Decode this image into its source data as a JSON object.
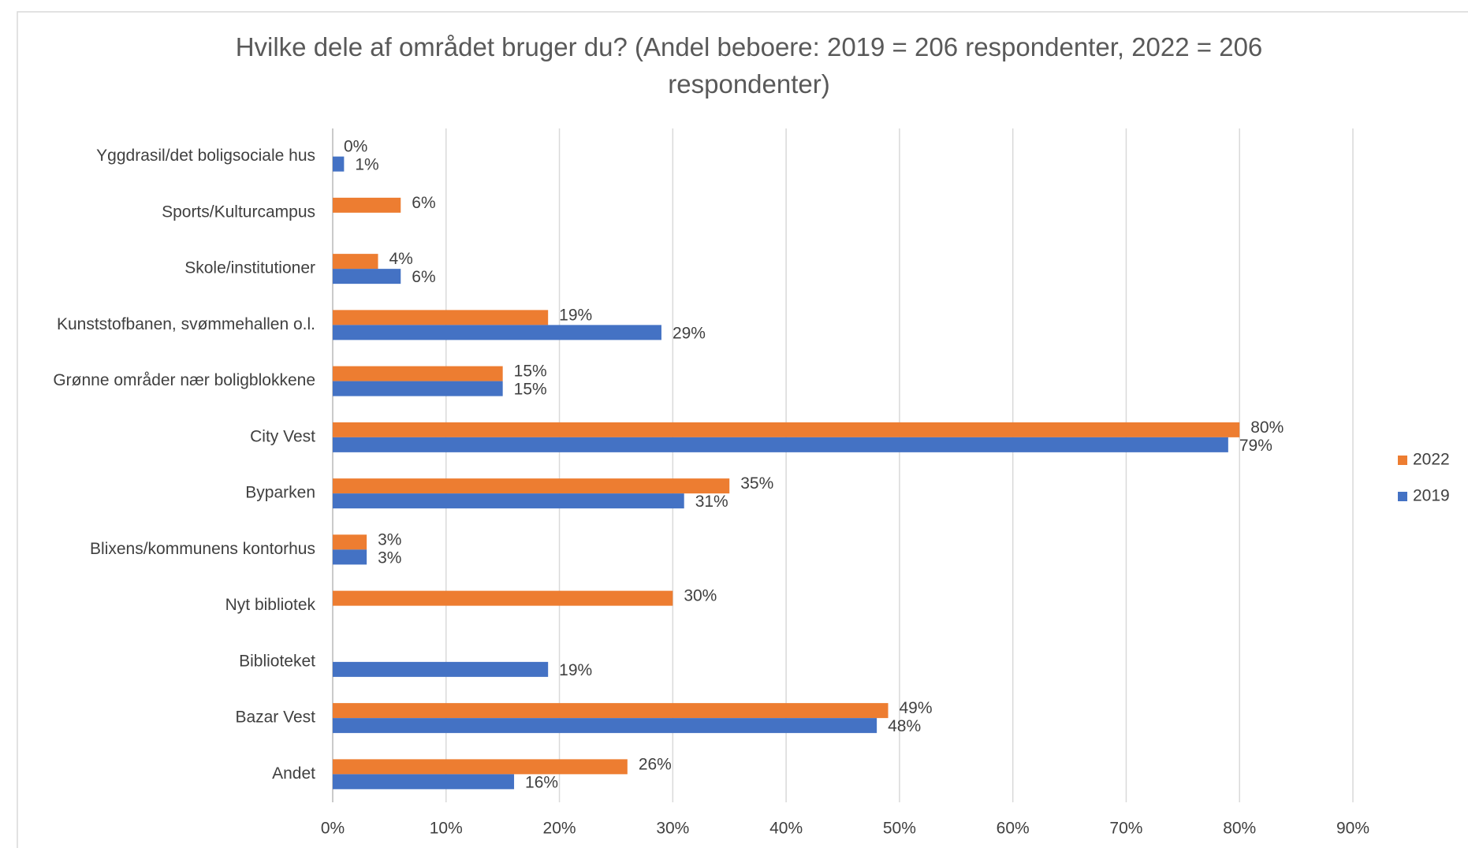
{
  "chart_data": {
    "type": "bar",
    "orientation": "horizontal",
    "title": "Hvilke dele af området bruger du? (Andel beboere: 2019 = 206 respondenter, 2022 = 206 respondenter)",
    "categories": [
      "Yggdrasil/det boligsociale hus",
      "Sports/Kulturcampus",
      "Skole/institutioner",
      "Kunststofbanen, svømmehallen o.l.",
      "Grønne områder nær boligblokkene",
      "City Vest",
      "Byparken",
      "Blixens/kommunens kontorhus",
      "Nyt bibliotek",
      "Biblioteket",
      "Bazar Vest",
      "Andet"
    ],
    "series": [
      {
        "name": "2022",
        "color": "#ed7d31",
        "values": [
          0,
          6,
          4,
          19,
          15,
          80,
          35,
          3,
          30,
          null,
          49,
          26
        ],
        "value_labels": [
          "0%",
          "6%",
          "4%",
          "19%",
          "15%",
          "80%",
          "35%",
          "3%",
          "30%",
          null,
          "49%",
          "26%"
        ]
      },
      {
        "name": "2019",
        "color": "#4472c4",
        "values": [
          1,
          null,
          6,
          29,
          15,
          79,
          31,
          3,
          null,
          19,
          48,
          16
        ],
        "value_labels": [
          "1%",
          null,
          "6%",
          "29%",
          "15%",
          "79%",
          "31%",
          "3%",
          null,
          "19%",
          "48%",
          "16%"
        ]
      }
    ],
    "xlim": [
      0,
      90
    ],
    "xticks": [
      {
        "value": 0,
        "label": "0%"
      },
      {
        "value": 10,
        "label": "10%"
      },
      {
        "value": 20,
        "label": "20%"
      },
      {
        "value": 30,
        "label": "30%"
      },
      {
        "value": 40,
        "label": "40%"
      },
      {
        "value": 50,
        "label": "50%"
      },
      {
        "value": 60,
        "label": "60%"
      },
      {
        "value": 70,
        "label": "70%"
      },
      {
        "value": 80,
        "label": "80%"
      },
      {
        "value": 90,
        "label": "90%"
      }
    ],
    "grid": true,
    "legend": "right"
  }
}
